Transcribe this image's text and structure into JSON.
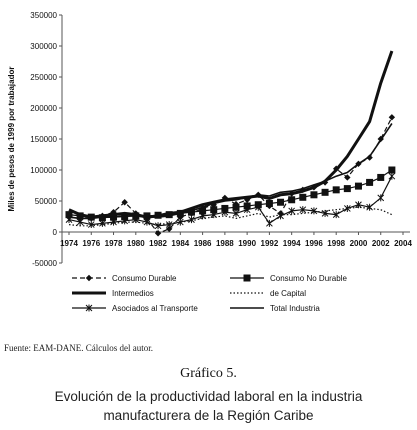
{
  "chart_data": {
    "type": "line",
    "title": "",
    "xlabel": "",
    "ylabel": "Miles de pesos de 1999 por trabajador",
    "ylim": [
      -50000,
      350000
    ],
    "yticks": [
      -50000,
      0,
      50000,
      100000,
      150000,
      200000,
      250000,
      300000,
      350000
    ],
    "ytick_labels": [
      "-50000",
      "0",
      "50000",
      "100000",
      "150000",
      "200000",
      "250000",
      "300000",
      "350000"
    ],
    "xlim": [
      1974,
      2004
    ],
    "x_tick_labels": [
      "1974",
      "1976",
      "1978",
      "1980",
      "1982",
      "1984",
      "1986",
      "1988",
      "1990",
      "1992",
      "1994",
      "1996",
      "1998",
      "2000",
      "2002",
      "2004"
    ],
    "x": [
      1974,
      1975,
      1976,
      1977,
      1978,
      1979,
      1980,
      1981,
      1982,
      1983,
      1984,
      1985,
      1986,
      1987,
      1988,
      1989,
      1990,
      1991,
      1992,
      1993,
      1994,
      1995,
      1996,
      1997,
      1998,
      1999,
      2000,
      2001,
      2002,
      2003
    ],
    "grid": false,
    "legend_position": "bottom",
    "series": [
      {
        "name": "Consumo Durable",
        "marker": "diamond",
        "dash": "dashed",
        "width": 1.2,
        "values": [
          24000,
          22000,
          22000,
          26000,
          32000,
          48000,
          30000,
          22000,
          -2000,
          5000,
          24000,
          30000,
          38000,
          44000,
          55000,
          45000,
          52000,
          60000,
          42000,
          30000,
          62000,
          68000,
          72000,
          80000,
          102000,
          88000,
          110000,
          120000,
          150000,
          185000
        ]
      },
      {
        "name": "Consumo No Durable",
        "marker": "square",
        "dash": "solid",
        "width": 1.2,
        "values": [
          28000,
          26000,
          24000,
          23000,
          24000,
          25000,
          26000,
          26000,
          27000,
          28000,
          30000,
          32000,
          34000,
          36000,
          38000,
          40000,
          42000,
          44000,
          46000,
          48000,
          52000,
          56000,
          60000,
          64000,
          68000,
          70000,
          74000,
          80000,
          88000,
          100000
        ]
      },
      {
        "name": "Intermedios",
        "marker": "none",
        "dash": "solid",
        "width": 3,
        "values": [
          36000,
          28000,
          24000,
          26000,
          28000,
          30000,
          28000,
          24000,
          26000,
          30000,
          32000,
          38000,
          44000,
          48000,
          52000,
          54000,
          56000,
          58000,
          54000,
          60000,
          62000,
          66000,
          72000,
          82000,
          100000,
          122000,
          150000,
          178000,
          240000,
          292000
        ]
      },
      {
        "name": "de Capital",
        "marker": "none",
        "dash": "dotted",
        "width": 1.2,
        "values": [
          12000,
          10000,
          10000,
          12000,
          14000,
          16000,
          16000,
          14000,
          12000,
          14000,
          16000,
          18000,
          22000,
          24000,
          26000,
          22000,
          26000,
          30000,
          24000,
          28000,
          28000,
          30000,
          32000,
          34000,
          36000,
          38000,
          40000,
          38000,
          36000,
          28000
        ]
      },
      {
        "name": "Asociados al Transporte",
        "marker": "x",
        "dash": "solid",
        "width": 1.2,
        "values": [
          20000,
          16000,
          12000,
          14000,
          16000,
          18000,
          20000,
          16000,
          10000,
          12000,
          16000,
          20000,
          26000,
          28000,
          32000,
          30000,
          36000,
          40000,
          14000,
          26000,
          34000,
          36000,
          34000,
          30000,
          28000,
          38000,
          44000,
          40000,
          55000,
          90000
        ]
      },
      {
        "name": "Total Industria",
        "marker": "none",
        "dash": "solid",
        "width": 1.6,
        "values": [
          24000,
          22000,
          22000,
          24000,
          24000,
          26000,
          26000,
          24000,
          24000,
          26000,
          30000,
          34000,
          40000,
          46000,
          50000,
          52000,
          56000,
          60000,
          58000,
          64000,
          66000,
          70000,
          76000,
          82000,
          90000,
          96000,
          110000,
          122000,
          148000,
          175000
        ]
      }
    ]
  },
  "caption": {
    "source": "Fuente: EAM-DANE. Cálculos del autor.",
    "figure_number": "Gráfico 5.",
    "title_line1": "Evolución de la productividad laboral en la industria",
    "title_line2": "manufacturera de la Región Caribe"
  }
}
